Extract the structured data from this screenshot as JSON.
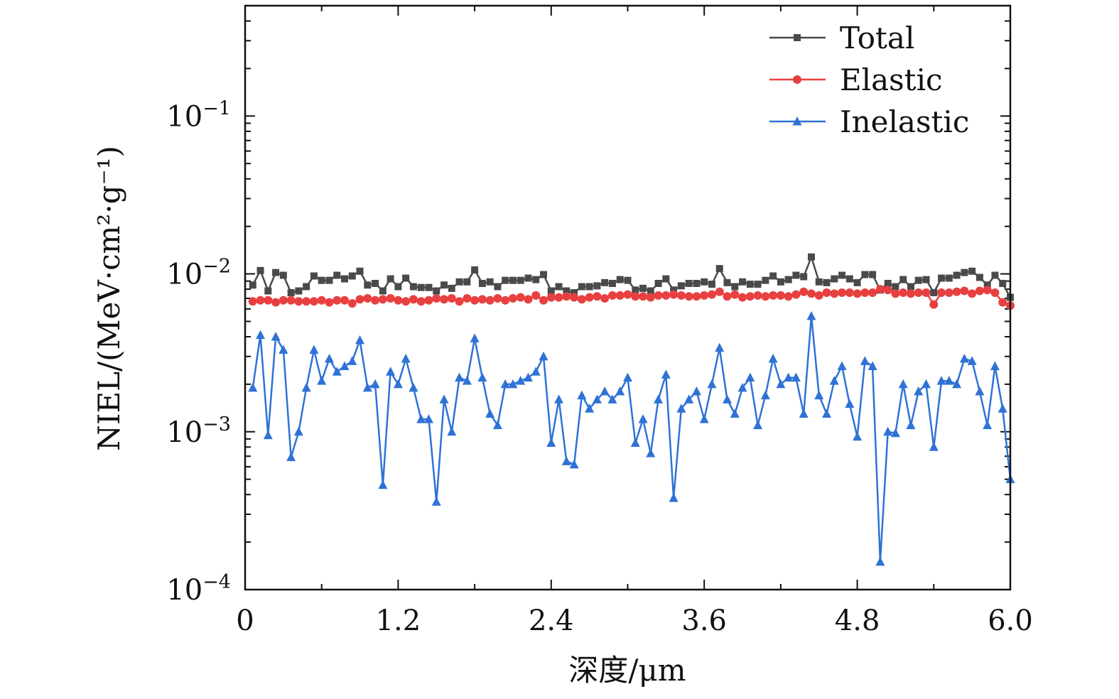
{
  "chart_data": {
    "type": "line",
    "xlabel": "深度/μm",
    "ylabel": "NIEL/(MeV·cm²·g⁻¹)",
    "xlim": [
      0,
      6.0
    ],
    "ylim": [
      0.0001,
      0.5
    ],
    "yscale": "log",
    "grid": false,
    "legend_position": "top-right",
    "x_ticks": [
      0,
      1.2,
      2.4,
      3.6,
      4.8,
      6.0
    ],
    "x_tick_labels": [
      "0",
      "1.2",
      "2.4",
      "3.6",
      "4.8",
      "6.0"
    ],
    "y_ticks": [
      {
        "value": 0.1,
        "base": "10",
        "exp": "−1"
      },
      {
        "value": 0.01,
        "base": "10",
        "exp": "−2"
      },
      {
        "value": 0.001,
        "base": "10",
        "exp": "−3"
      },
      {
        "value": 0.0001,
        "base": "10",
        "exp": "−4"
      }
    ],
    "x": [
      0.06,
      0.12,
      0.18,
      0.24,
      0.3,
      0.36,
      0.42,
      0.48,
      0.54,
      0.6,
      0.66,
      0.72,
      0.78,
      0.84,
      0.9,
      0.96,
      1.02,
      1.08,
      1.14,
      1.2,
      1.26,
      1.32,
      1.38,
      1.44,
      1.5,
      1.56,
      1.62,
      1.68,
      1.74,
      1.8,
      1.86,
      1.92,
      1.98,
      2.04,
      2.1,
      2.16,
      2.22,
      2.28,
      2.34,
      2.4,
      2.46,
      2.52,
      2.58,
      2.64,
      2.7,
      2.76,
      2.82,
      2.88,
      2.94,
      3.0,
      3.06,
      3.12,
      3.18,
      3.24,
      3.3,
      3.36,
      3.42,
      3.48,
      3.54,
      3.6,
      3.66,
      3.72,
      3.78,
      3.84,
      3.9,
      3.96,
      4.02,
      4.08,
      4.14,
      4.2,
      4.26,
      4.32,
      4.38,
      4.44,
      4.5,
      4.56,
      4.62,
      4.68,
      4.74,
      4.8,
      4.86,
      4.92,
      4.98,
      5.04,
      5.1,
      5.16,
      5.22,
      5.28,
      5.34,
      5.4,
      5.46,
      5.52,
      5.58,
      5.64,
      5.7,
      5.76,
      5.82,
      5.88,
      5.94,
      6.0
    ],
    "series": [
      {
        "name": "Total",
        "color": "#4a4a4a",
        "marker": "square",
        "values": [
          0.0085,
          0.0105,
          0.0078,
          0.0102,
          0.0098,
          0.0076,
          0.0078,
          0.0083,
          0.0097,
          0.0091,
          0.0091,
          0.0098,
          0.0093,
          0.0097,
          0.0104,
          0.0085,
          0.0087,
          0.0078,
          0.0093,
          0.0083,
          0.0094,
          0.0083,
          0.0082,
          0.0082,
          0.0078,
          0.0085,
          0.0081,
          0.0089,
          0.0089,
          0.0106,
          0.0087,
          0.0089,
          0.0083,
          0.0091,
          0.0091,
          0.0091,
          0.0094,
          0.0092,
          0.0099,
          0.0078,
          0.0083,
          0.0078,
          0.0076,
          0.0083,
          0.0083,
          0.0084,
          0.0088,
          0.0087,
          0.0092,
          0.0091,
          0.0079,
          0.0081,
          0.0078,
          0.0087,
          0.0093,
          0.0079,
          0.0084,
          0.0087,
          0.0087,
          0.0089,
          0.0086,
          0.0108,
          0.0088,
          0.0083,
          0.0089,
          0.0086,
          0.0086,
          0.0091,
          0.0097,
          0.0089,
          0.0092,
          0.0098,
          0.0096,
          0.0128,
          0.0089,
          0.0088,
          0.0093,
          0.0098,
          0.0093,
          0.0088,
          0.0099,
          0.0099,
          0.0079,
          0.0087,
          0.0083,
          0.0092,
          0.0083,
          0.0091,
          0.0092,
          0.0076,
          0.0094,
          0.0094,
          0.0098,
          0.0102,
          0.0104,
          0.0095,
          0.0085,
          0.0098,
          0.0087,
          0.0071
        ]
      },
      {
        "name": "Elastic",
        "color": "#e84040",
        "marker": "circle",
        "values": [
          0.0067,
          0.0068,
          0.0068,
          0.0066,
          0.0068,
          0.0068,
          0.0067,
          0.0067,
          0.0067,
          0.0068,
          0.0066,
          0.0068,
          0.0068,
          0.0065,
          0.0069,
          0.007,
          0.0068,
          0.0069,
          0.007,
          0.0068,
          0.0067,
          0.0069,
          0.0067,
          0.0068,
          0.007,
          0.0069,
          0.007,
          0.0067,
          0.007,
          0.0068,
          0.0069,
          0.0068,
          0.007,
          0.0068,
          0.007,
          0.0071,
          0.0069,
          0.0073,
          0.0068,
          0.0071,
          0.0071,
          0.0072,
          0.0071,
          0.0069,
          0.0071,
          0.0072,
          0.007,
          0.0073,
          0.0073,
          0.0074,
          0.0072,
          0.0072,
          0.0071,
          0.0073,
          0.0073,
          0.0074,
          0.0073,
          0.0072,
          0.0072,
          0.0073,
          0.0074,
          0.0077,
          0.0072,
          0.0074,
          0.0071,
          0.0072,
          0.0073,
          0.0072,
          0.0073,
          0.0073,
          0.0072,
          0.0074,
          0.0077,
          0.0075,
          0.0073,
          0.0076,
          0.0075,
          0.0076,
          0.0076,
          0.0075,
          0.0076,
          0.0076,
          0.008,
          0.0079,
          0.0075,
          0.0076,
          0.0075,
          0.0076,
          0.0076,
          0.0064,
          0.0076,
          0.0076,
          0.0077,
          0.0078,
          0.0075,
          0.0078,
          0.0079,
          0.0076,
          0.0066,
          0.0063
        ]
      },
      {
        "name": "Inelastic",
        "color": "#2f72d6",
        "marker": "triangle",
        "values": [
          0.0019,
          0.0041,
          0.00095,
          0.004,
          0.0033,
          0.00069,
          0.001,
          0.0019,
          0.0033,
          0.0021,
          0.0029,
          0.0024,
          0.0026,
          0.0028,
          0.0038,
          0.0019,
          0.002,
          0.00046,
          0.0024,
          0.002,
          0.0029,
          0.0019,
          0.0012,
          0.0012,
          0.00036,
          0.0016,
          0.001,
          0.0022,
          0.0021,
          0.0039,
          0.0022,
          0.0013,
          0.0011,
          0.002,
          0.002,
          0.0021,
          0.0022,
          0.0024,
          0.003,
          0.00085,
          0.0016,
          0.00065,
          0.00062,
          0.0017,
          0.0014,
          0.0016,
          0.0018,
          0.0016,
          0.0018,
          0.0022,
          0.00085,
          0.0012,
          0.00073,
          0.0016,
          0.0023,
          0.00038,
          0.0014,
          0.0016,
          0.0018,
          0.0012,
          0.002,
          0.0034,
          0.0016,
          0.0013,
          0.0019,
          0.0022,
          0.0011,
          0.0017,
          0.0029,
          0.002,
          0.0022,
          0.0022,
          0.0013,
          0.0054,
          0.0017,
          0.0013,
          0.0021,
          0.0026,
          0.0015,
          0.00093,
          0.0028,
          0.0026,
          0.00015,
          0.001,
          0.00098,
          0.002,
          0.0011,
          0.0018,
          0.002,
          0.0008,
          0.0021,
          0.0021,
          0.002,
          0.0029,
          0.0028,
          0.0018,
          0.0011,
          0.0026,
          0.0014,
          0.0005
        ]
      }
    ]
  }
}
